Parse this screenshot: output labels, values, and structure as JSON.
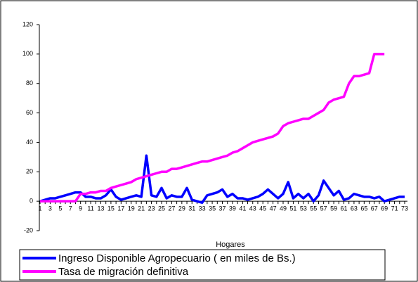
{
  "chart_data": {
    "type": "line",
    "x_label": "Hogares",
    "categories": [
      1,
      null,
      3,
      null,
      5,
      null,
      7,
      null,
      9,
      null,
      11,
      null,
      13,
      null,
      15,
      null,
      17,
      null,
      19,
      null,
      21,
      null,
      23,
      null,
      25,
      null,
      27,
      null,
      29,
      null,
      31,
      null,
      33,
      null,
      35,
      null,
      37,
      null,
      39,
      null,
      41,
      null,
      43,
      null,
      45,
      null,
      47,
      null,
      49,
      null,
      51,
      null,
      53,
      null,
      55,
      null,
      57,
      null,
      59,
      null,
      61,
      null,
      63,
      null,
      65,
      null,
      67,
      null,
      69,
      null,
      71,
      null,
      73
    ],
    "series": [
      {
        "name": "Ingreso Disponible Agropecuario ( en miles de Bs.)",
        "color": "#0000ff",
        "values": [
          0,
          1,
          2,
          2,
          3,
          4,
          5,
          6,
          6,
          3,
          3,
          2,
          2,
          4,
          8,
          3,
          1,
          2,
          3,
          4,
          3,
          31,
          4,
          3,
          9,
          2,
          4,
          3,
          3,
          9,
          1,
          0,
          -1,
          4,
          5,
          6,
          8,
          3,
          5,
          2,
          2,
          1,
          2,
          3,
          5,
          8,
          5,
          2,
          5,
          13,
          2,
          5,
          2,
          5,
          0,
          4,
          14,
          9,
          4,
          7,
          1,
          2,
          5,
          4,
          3,
          3,
          2,
          3,
          0,
          1,
          2,
          3,
          3
        ]
      },
      {
        "name": "Tasa de migración definitiva",
        "color": "#ff00ff",
        "values": [
          0,
          0,
          0,
          0,
          0,
          0,
          0,
          0,
          5,
          5,
          6,
          6,
          7,
          7,
          9,
          10,
          11,
          12,
          13,
          15,
          16,
          17,
          18,
          19,
          20,
          20,
          22,
          22,
          23,
          24,
          25,
          26,
          27,
          27,
          28,
          29,
          30,
          31,
          33,
          34,
          36,
          38,
          40,
          41,
          42,
          43,
          44,
          46,
          51,
          53,
          54,
          55,
          56,
          56,
          58,
          60,
          62,
          67,
          69,
          70,
          71,
          80,
          85,
          85,
          86,
          87,
          100,
          100,
          100,
          null,
          null,
          null,
          null
        ]
      }
    ],
    "ylim": [
      -20,
      120
    ],
    "yticks": [
      -20,
      0,
      20,
      40,
      60,
      80,
      100,
      120
    ],
    "legend": "bottom"
  }
}
